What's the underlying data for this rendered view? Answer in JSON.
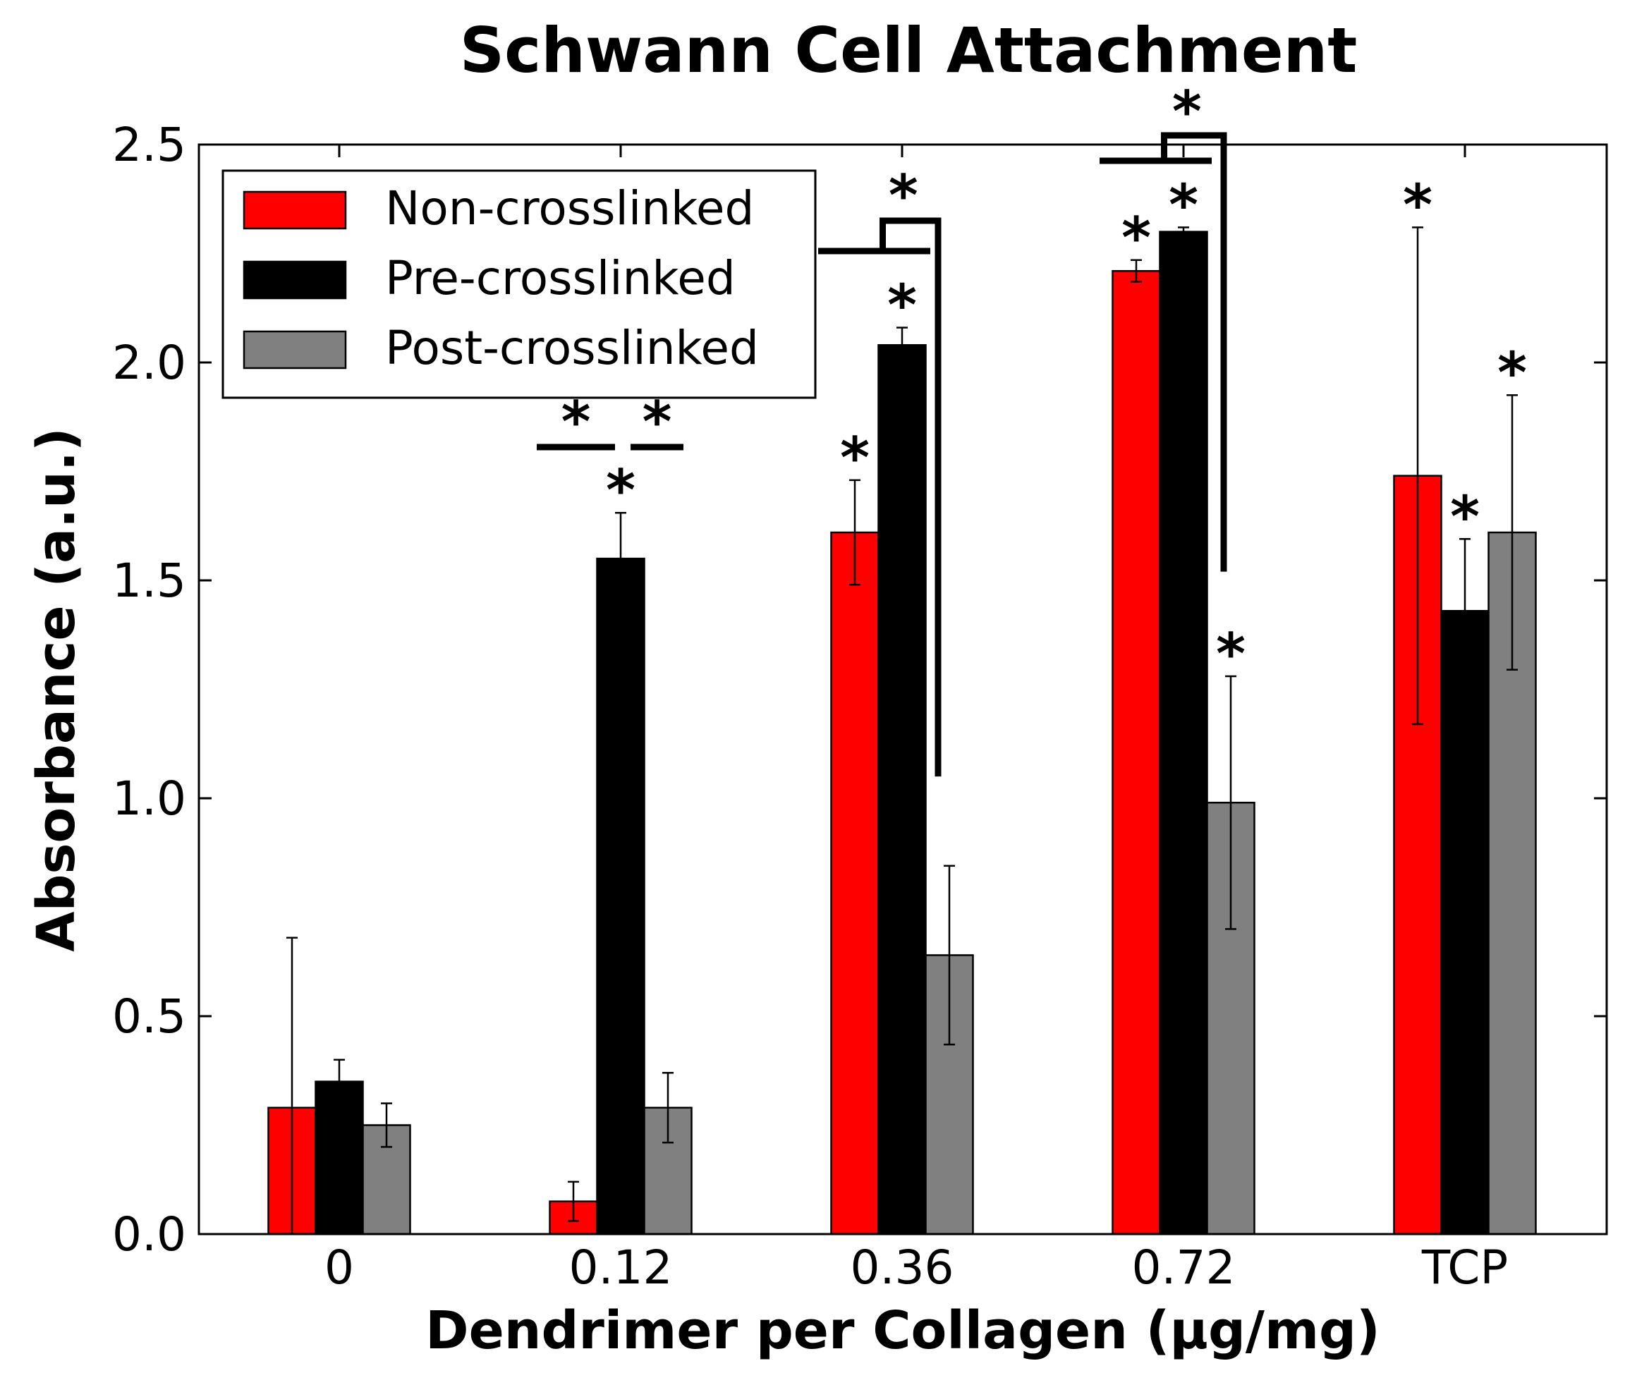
{
  "chart_data": {
    "type": "bar",
    "title": "Schwann Cell Attachment",
    "xlabel": "Dendrimer per Collagen (µg/mg)",
    "ylabel": "Absorbance (a.u.)",
    "ylim": [
      0,
      2.5
    ],
    "yticks": [
      "0.0",
      "0.5",
      "1.0",
      "1.5",
      "2.0",
      "2.5"
    ],
    "categories": [
      "0",
      "0.12",
      "0.36",
      "0.72",
      "TCP"
    ],
    "legend_position": "top-left",
    "grid": false,
    "series": [
      {
        "name": "Non-crosslinked",
        "color": "#ff0000",
        "values": [
          0.29,
          0.075,
          1.61,
          2.21,
          1.74
        ],
        "errors": [
          0.39,
          0.045,
          0.12,
          0.025,
          0.57
        ],
        "stars": [
          false,
          false,
          true,
          true,
          true
        ]
      },
      {
        "name": "Pre-crosslinked",
        "color": "#000000",
        "values": [
          0.35,
          1.55,
          2.04,
          2.3,
          1.43
        ],
        "errors": [
          0.05,
          0.105,
          0.04,
          0.01,
          0.165
        ],
        "stars": [
          false,
          true,
          true,
          true,
          true
        ]
      },
      {
        "name": "Post-crosslinked",
        "color": "#808080",
        "values": [
          0.25,
          0.29,
          0.64,
          0.99,
          1.61
        ],
        "errors": [
          0.05,
          0.08,
          0.205,
          0.29,
          0.315
        ],
        "stars": [
          false,
          false,
          false,
          true,
          true
        ]
      }
    ],
    "significance_star": "*"
  }
}
